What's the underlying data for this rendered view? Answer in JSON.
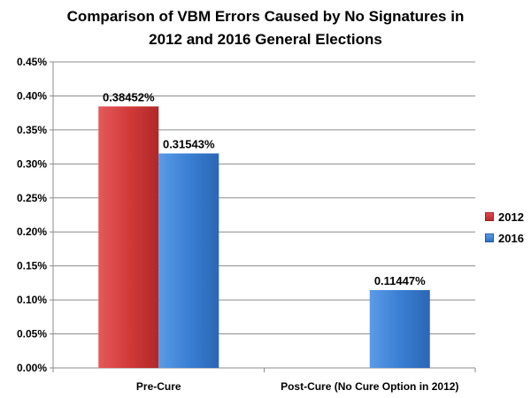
{
  "chart_data": {
    "type": "bar",
    "title_lines": [
      "Comparison of VBM Errors Caused by No Signatures in",
      "2012 and 2016 General Elections"
    ],
    "categories": [
      "Pre-Cure",
      "Post-Cure (No Cure Option in 2012)"
    ],
    "series": [
      {
        "name": "2012",
        "values": [
          0.38452,
          null
        ],
        "labels": [
          "0.38452%",
          ""
        ],
        "color": "#d23a3a"
      },
      {
        "name": "2016",
        "values": [
          0.31543,
          0.11447
        ],
        "labels": [
          "0.31543%",
          "0.11447%"
        ],
        "color": "#3a7fd4"
      }
    ],
    "ylim": [
      0,
      0.45
    ],
    "yticks": [
      0,
      0.05,
      0.1,
      0.15,
      0.2,
      0.25,
      0.3,
      0.35,
      0.4,
      0.45
    ],
    "ytick_labels": [
      "0.00%",
      "0.05%",
      "0.10%",
      "0.15%",
      "0.20%",
      "0.25%",
      "0.30%",
      "0.35%",
      "0.40%",
      "0.45%"
    ],
    "grid": true,
    "legend": "right"
  }
}
